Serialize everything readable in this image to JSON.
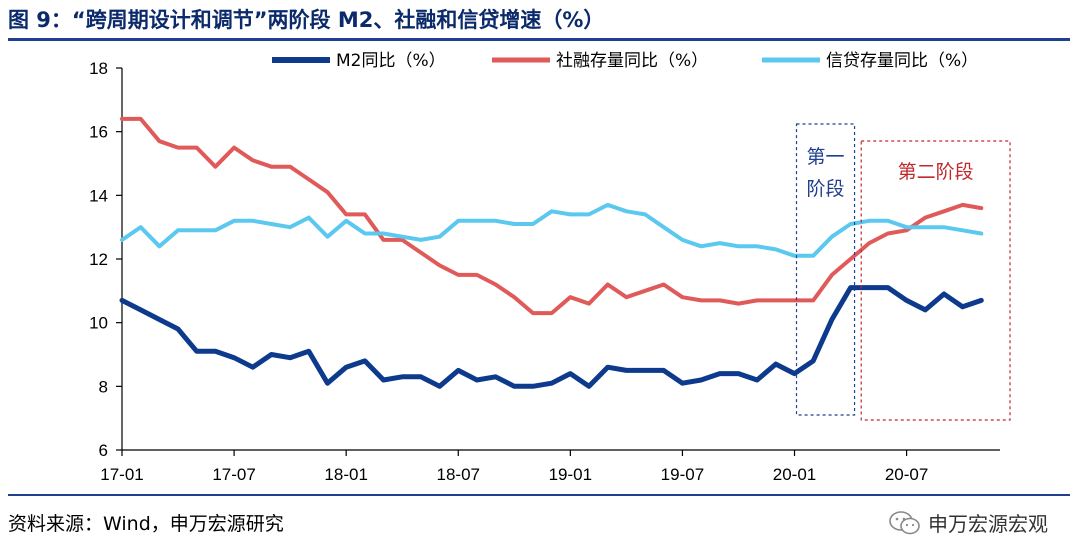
{
  "title": "图 9：“跨周期设计和调节”两阶段 M2、社融和信贷增速（%）",
  "source": "资料来源：Wind，申万宏源研究",
  "watermark": "申万宏源宏观",
  "watermark_icon": "wechat-icon",
  "chart_data": {
    "type": "line",
    "ylim": [
      6,
      18
    ],
    "yticks": [
      6,
      8,
      10,
      12,
      14,
      16,
      18
    ],
    "x_tick_labels": [
      "17-01",
      "17-07",
      "18-01",
      "18-07",
      "19-01",
      "19-07",
      "20-01",
      "20-07"
    ],
    "x": [
      "17-01",
      "17-02",
      "17-03",
      "17-04",
      "17-05",
      "17-06",
      "17-07",
      "17-08",
      "17-09",
      "17-10",
      "17-11",
      "17-12",
      "18-01",
      "18-02",
      "18-03",
      "18-04",
      "18-05",
      "18-06",
      "18-07",
      "18-08",
      "18-09",
      "18-10",
      "18-11",
      "18-12",
      "19-01",
      "19-02",
      "19-03",
      "19-04",
      "19-05",
      "19-06",
      "19-07",
      "19-08",
      "19-09",
      "19-10",
      "19-11",
      "19-12",
      "20-01",
      "20-02",
      "20-03",
      "20-04",
      "20-05",
      "20-06",
      "20-07",
      "20-08",
      "20-09",
      "20-10",
      "20-11"
    ],
    "legend_position": "top",
    "grid": false,
    "series": [
      {
        "name": "M2同比（%）",
        "color": "#0d3a8c",
        "width": 5,
        "values": [
          10.7,
          10.4,
          10.1,
          9.8,
          9.1,
          9.1,
          8.9,
          8.6,
          9.0,
          8.9,
          9.1,
          8.1,
          8.6,
          8.8,
          8.2,
          8.3,
          8.3,
          8.0,
          8.5,
          8.2,
          8.3,
          8.0,
          8.0,
          8.1,
          8.4,
          8.0,
          8.6,
          8.5,
          8.5,
          8.5,
          8.1,
          8.2,
          8.4,
          8.4,
          8.2,
          8.7,
          8.4,
          8.8,
          10.1,
          11.1,
          11.1,
          11.1,
          10.7,
          10.4,
          10.9,
          10.5,
          10.7
        ]
      },
      {
        "name": "社融存量同比（%）",
        "color": "#e05a5a",
        "width": 4,
        "values": [
          16.4,
          16.4,
          15.7,
          15.5,
          15.5,
          14.9,
          15.5,
          15.1,
          14.9,
          14.9,
          14.5,
          14.1,
          13.4,
          13.4,
          12.6,
          12.6,
          12.2,
          11.8,
          11.5,
          11.5,
          11.2,
          10.8,
          10.3,
          10.3,
          10.8,
          10.6,
          11.2,
          10.8,
          11.0,
          11.2,
          10.8,
          10.7,
          10.7,
          10.6,
          10.7,
          10.7,
          10.7,
          10.7,
          11.5,
          12.0,
          12.5,
          12.8,
          12.9,
          13.3,
          13.5,
          13.7,
          13.6
        ]
      },
      {
        "name": "信贷存量同比（%）",
        "color": "#5bc8f0",
        "width": 4,
        "values": [
          12.6,
          13.0,
          12.4,
          12.9,
          12.9,
          12.9,
          13.2,
          13.2,
          13.1,
          13.0,
          13.3,
          12.7,
          13.2,
          12.8,
          12.8,
          12.7,
          12.6,
          12.7,
          13.2,
          13.2,
          13.2,
          13.1,
          13.1,
          13.5,
          13.4,
          13.4,
          13.7,
          13.5,
          13.4,
          13.0,
          12.6,
          12.4,
          12.5,
          12.4,
          12.4,
          12.3,
          12.1,
          12.1,
          12.7,
          13.1,
          13.2,
          13.2,
          13.0,
          13.0,
          13.0,
          12.9,
          12.8
        ]
      }
    ],
    "annotations": [
      {
        "label": "第一阶段",
        "line1": "第一",
        "line2": "阶段",
        "color": "#1f3f8f"
      },
      {
        "label": "第二阶段",
        "color": "#c0282d"
      }
    ]
  }
}
